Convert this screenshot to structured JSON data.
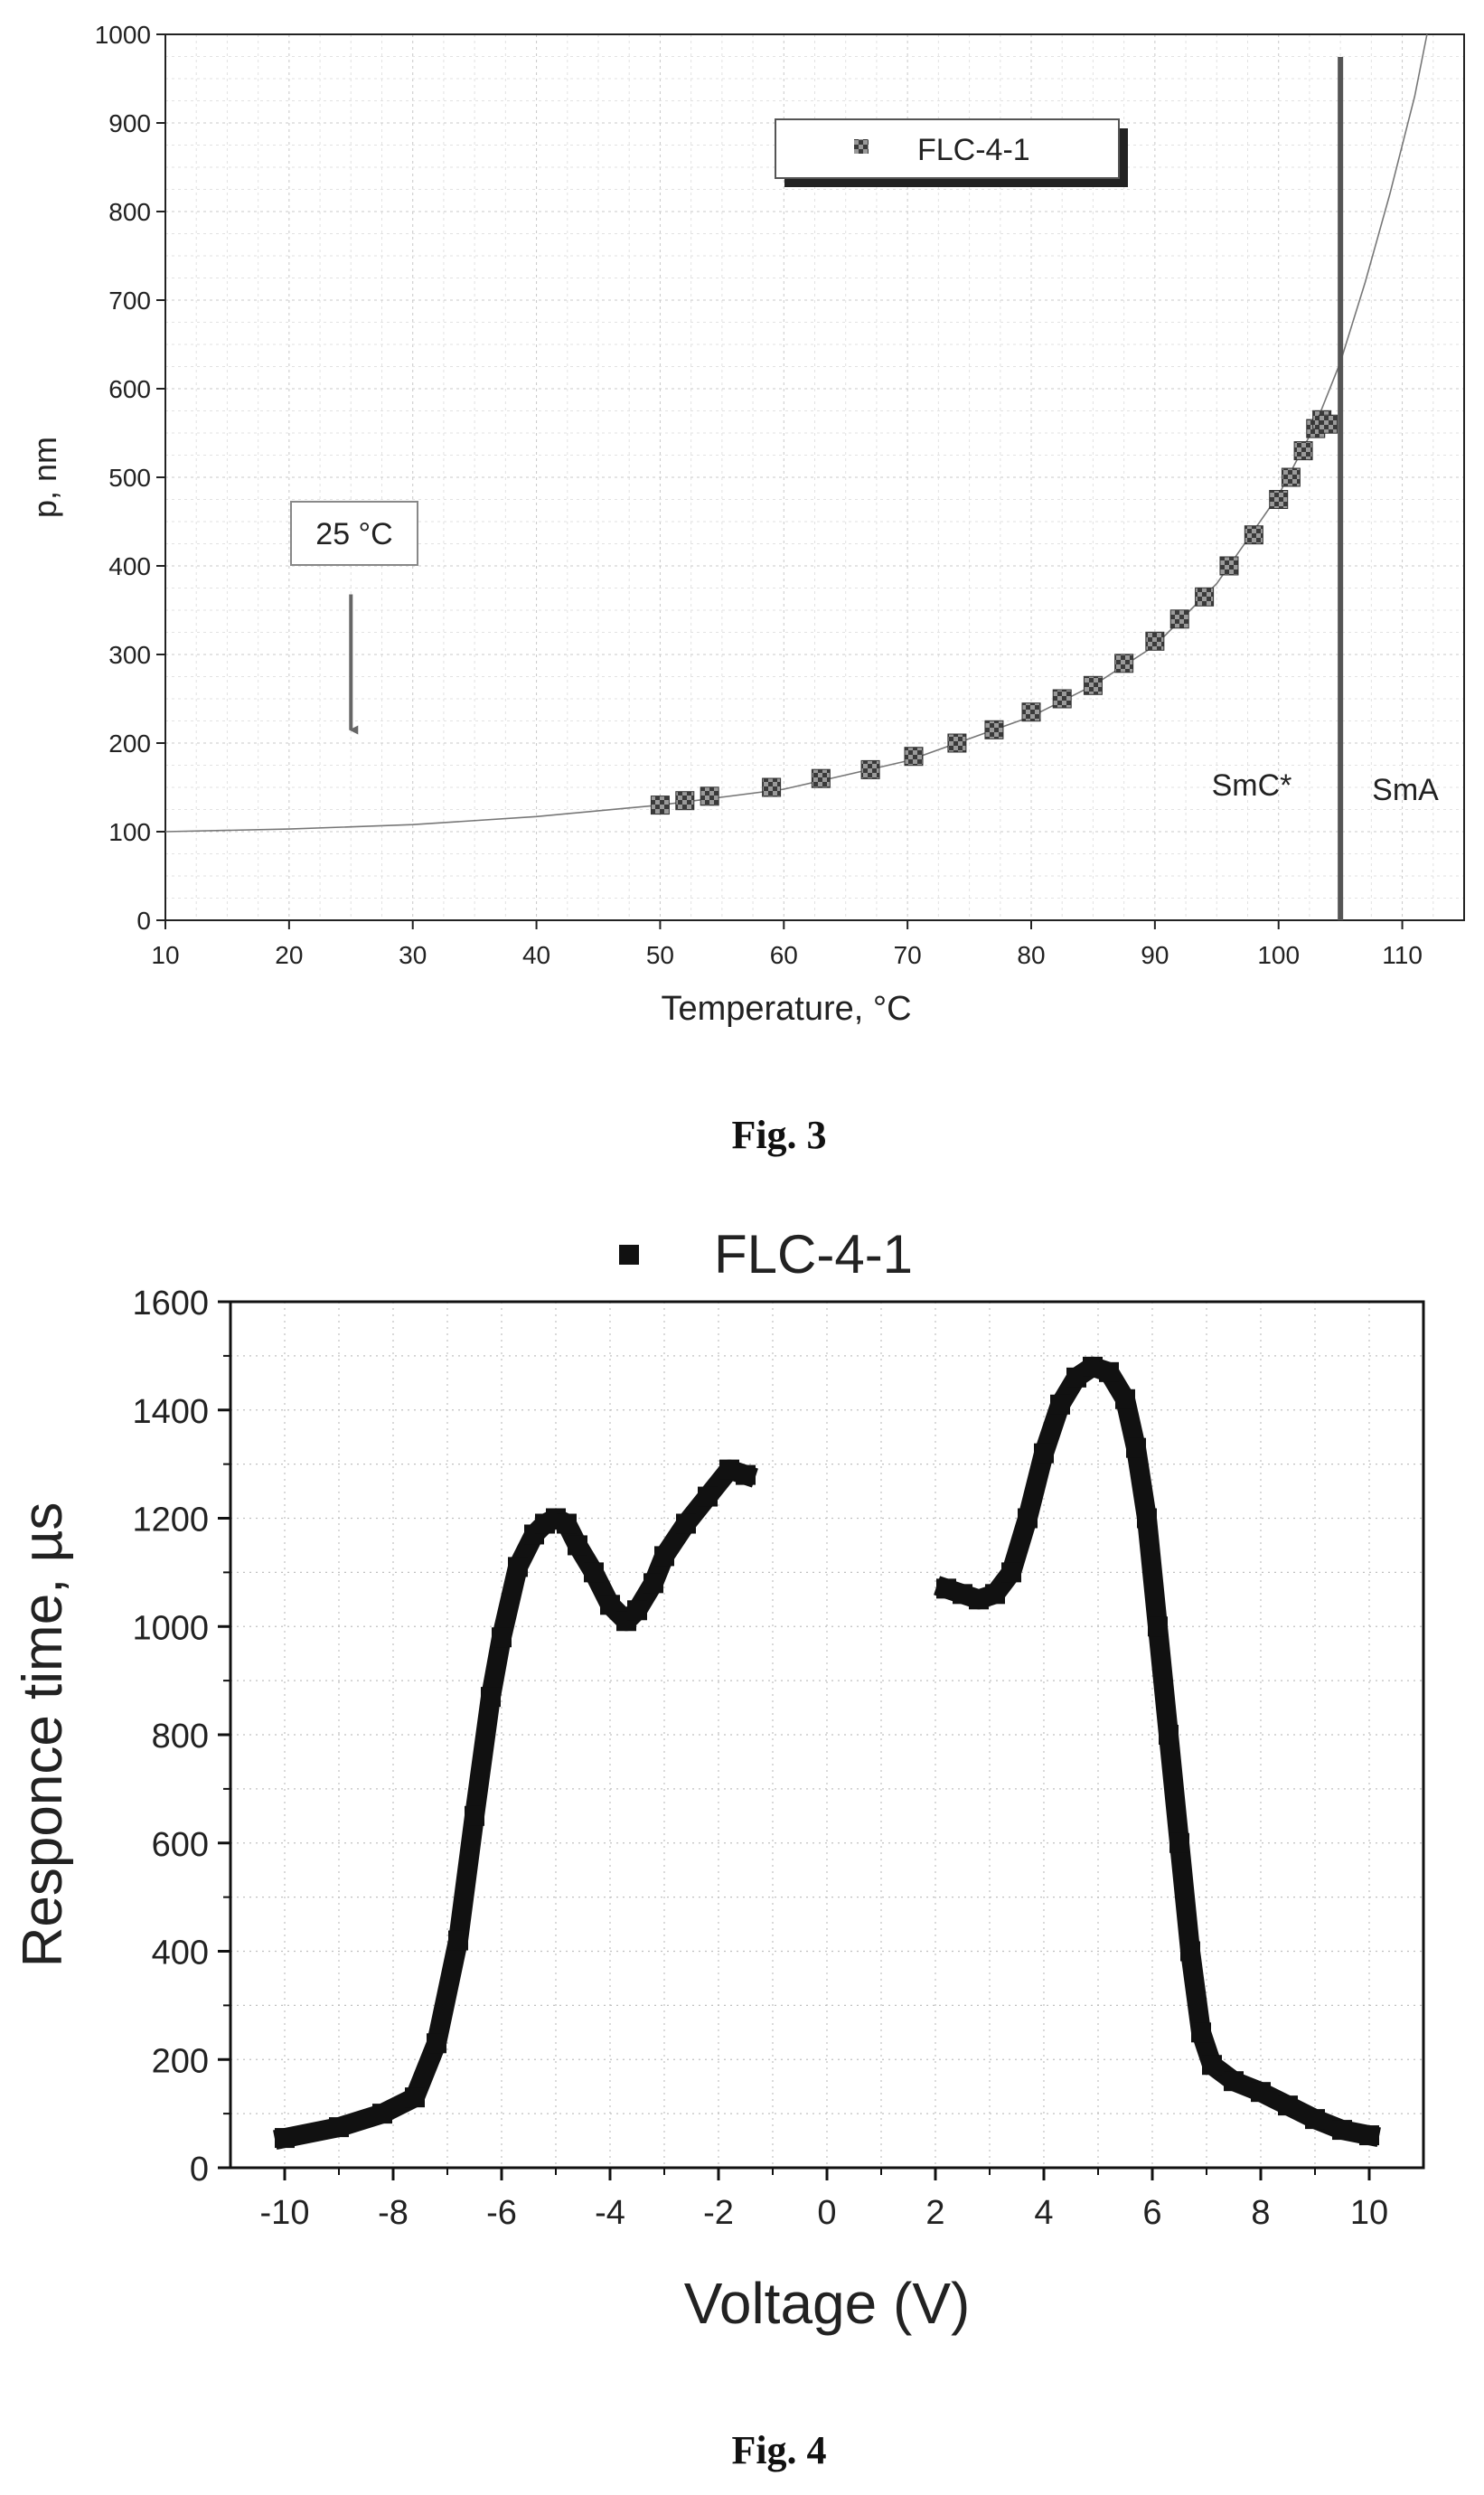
{
  "figures": [
    {
      "caption": "Fig. 3",
      "chart_data": {
        "type": "scatter",
        "title": "",
        "xlabel": "Temperature, °C",
        "ylabel": "p, nm",
        "xlim": [
          10,
          115
        ],
        "ylim": [
          0,
          1000
        ],
        "xticks": [
          10,
          20,
          30,
          40,
          50,
          60,
          70,
          80,
          90,
          100,
          110
        ],
        "yticks": [
          0,
          100,
          200,
          300,
          400,
          500,
          600,
          700,
          800,
          900,
          1000
        ],
        "grid": true,
        "legend_position": "top-center",
        "series": [
          {
            "name": "FLC-4-1",
            "x": [
              50,
              52,
              54,
              59,
              63,
              67,
              70.5,
              74,
              77,
              80,
              82.5,
              85,
              87.5,
              90,
              92,
              94,
              96,
              98,
              100,
              101,
              102,
              103,
              103.5,
              104
            ],
            "y": [
              130,
              135,
              140,
              150,
              160,
              170,
              185,
              200,
              215,
              235,
              250,
              265,
              290,
              315,
              340,
              365,
              400,
              435,
              475,
              500,
              530,
              555,
              565,
              560
            ]
          }
        ],
        "fit_curve": {
          "x": [
            10,
            20,
            30,
            40,
            50,
            60,
            70,
            80,
            85,
            90,
            95,
            100,
            103,
            105,
            107,
            109,
            111,
            112
          ],
          "y": [
            100,
            103,
            108,
            117,
            130,
            148,
            180,
            230,
            265,
            310,
            380,
            480,
            560,
            630,
            720,
            820,
            930,
            1000
          ]
        },
        "vline": {
          "x": 105
        },
        "annotations": [
          {
            "text": "25 °C",
            "kind": "boxed-label"
          },
          {
            "text": "SmC*",
            "kind": "phase-label"
          },
          {
            "text": "SmA",
            "kind": "phase-label"
          }
        ],
        "arrow_marker": {
          "x": 25,
          "y": 225
        }
      }
    },
    {
      "caption": "Fig. 4",
      "chart_data": {
        "type": "scatter",
        "title": "",
        "xlabel": "Voltage (V)",
        "ylabel": "Responce time, µs",
        "xlim": [
          -11,
          11
        ],
        "ylim": [
          0,
          1600
        ],
        "xticks": [
          -10,
          -8,
          -6,
          -4,
          -2,
          0,
          2,
          4,
          6,
          8,
          10
        ],
        "yticks": [
          0,
          200,
          400,
          600,
          800,
          1000,
          1200,
          1400,
          1600
        ],
        "grid": true,
        "legend_position": "top-center",
        "series": [
          {
            "name": "FLC-4-1",
            "segments": [
              {
                "x": [
                  -10,
                  -9,
                  -8.2,
                  -7.6,
                  -7.2,
                  -6.8,
                  -6.5,
                  -6.2,
                  -6.0,
                  -5.7,
                  -5.4,
                  -5.2,
                  -5.0,
                  -4.8,
                  -4.6,
                  -4.3,
                  -4.0,
                  -3.7,
                  -3.5,
                  -3.2,
                  -3.0,
                  -2.6,
                  -2.2,
                  -1.8,
                  -1.5
                ],
                "y": [
                  55,
                  75,
                  100,
                  130,
                  230,
                  420,
                  650,
                  870,
                  980,
                  1110,
                  1170,
                  1190,
                  1200,
                  1190,
                  1150,
                  1100,
                  1040,
                  1010,
                  1030,
                  1080,
                  1130,
                  1190,
                  1240,
                  1290,
                  1280
                ]
              },
              {
                "x": [
                  2.2,
                  2.5,
                  2.8,
                  3.1,
                  3.4,
                  3.7,
                  4.0,
                  4.3,
                  4.6,
                  4.9,
                  5.2,
                  5.5,
                  5.7,
                  5.9,
                  6.1,
                  6.3,
                  6.5,
                  6.7,
                  6.9,
                  7.1,
                  7.5,
                  8.0,
                  8.5,
                  9.0,
                  9.5,
                  10.0
                ],
                "y": [
                  1070,
                  1060,
                  1050,
                  1060,
                  1100,
                  1200,
                  1320,
                  1410,
                  1460,
                  1480,
                  1470,
                  1420,
                  1330,
                  1200,
                  1000,
                  800,
                  600,
                  400,
                  250,
                  190,
                  160,
                  140,
                  115,
                  90,
                  70,
                  60
                ]
              }
            ]
          }
        ]
      }
    }
  ]
}
